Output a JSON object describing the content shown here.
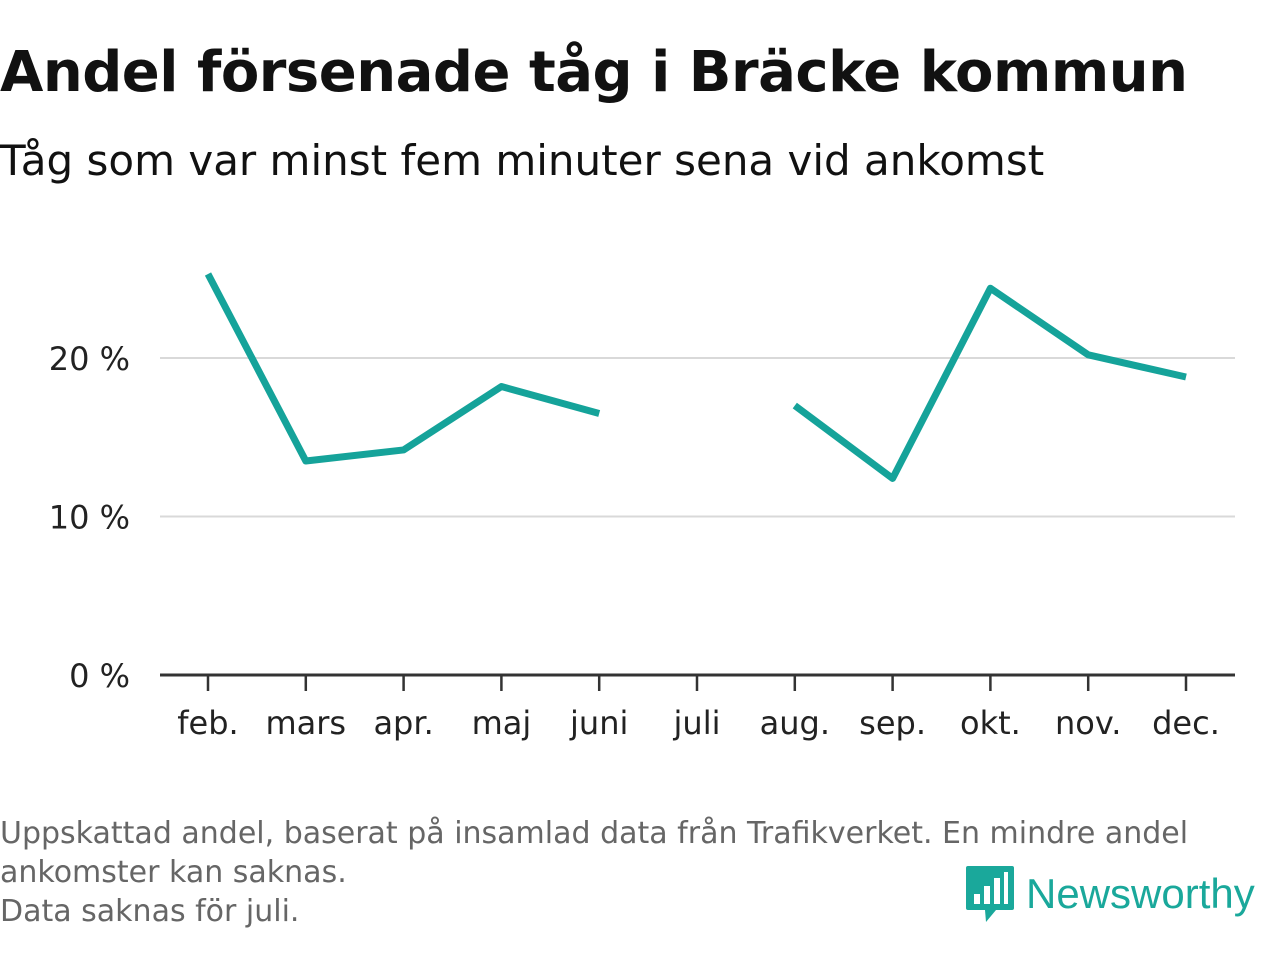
{
  "title": "Andel försenade tåg i Bräcke kommun",
  "subtitle": "Tåg som var minst fem minuter sena vid ankomst",
  "chart_data": {
    "type": "line",
    "categories": [
      "feb.",
      "mars",
      "apr.",
      "maj",
      "juni",
      "juli",
      "aug.",
      "sep.",
      "okt.",
      "nov.",
      "dec."
    ],
    "series": [
      {
        "values": [
          25.3,
          13.5,
          14.2,
          18.2,
          16.5,
          null,
          17.0,
          12.4,
          24.4,
          20.2,
          18.8
        ]
      }
    ],
    "y_ticks": [
      0,
      10,
      20
    ],
    "y_tick_labels": [
      "0 %",
      "10 %",
      "20 %"
    ],
    "ylim": [
      0,
      25
    ],
    "xlabel": "",
    "ylabel": "",
    "grid": true,
    "line_color": "#15a39a"
  },
  "footer": {
    "line1": "Uppskattad andel, baserat på insamlad data från Trafikverket. En mindre andel",
    "line2": "ankomster kan saknas.",
    "line3": "Data saknas för juli."
  },
  "brand": {
    "name": "Newsworthy",
    "icon": "newsworthy-logo-icon",
    "color": "#1aa89b"
  }
}
